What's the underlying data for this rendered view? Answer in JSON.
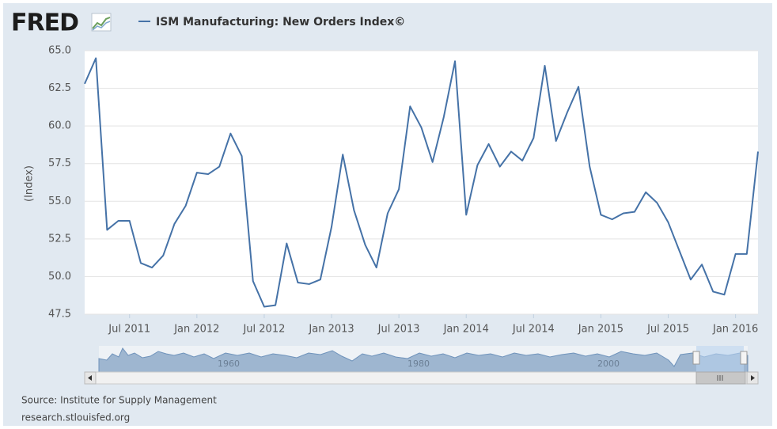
{
  "chart_data": {
    "type": "line",
    "logo": "FRED",
    "y_label": "(Index)",
    "source": "Source: Institute for Supply Management",
    "url": "research.stlouisfed.org",
    "navigator_labels": [
      "1960",
      "1980",
      "2000"
    ],
    "categories": [
      null,
      null,
      null,
      null,
      "Jul 2011",
      null,
      null,
      null,
      null,
      null,
      "Jan 2012",
      null,
      null,
      null,
      null,
      null,
      "Jul 2012",
      null,
      null,
      null,
      null,
      null,
      "Jan 2013",
      null,
      null,
      null,
      null,
      null,
      "Jul 2013",
      null,
      null,
      null,
      null,
      null,
      "Jan 2014",
      null,
      null,
      null,
      null,
      null,
      "Jul 2014",
      null,
      null,
      null,
      null,
      null,
      "Jan 2015",
      null,
      null,
      null,
      null,
      null,
      "Jul 2015",
      null,
      null,
      null,
      null,
      null,
      "Jan 2016",
      null,
      null
    ],
    "series": [
      {
        "name": "ISM Manufacturing: New Orders Index©",
        "color": "#4572a7",
        "values": [
          62.8,
          64.5,
          53.1,
          53.7,
          53.7,
          50.9,
          50.6,
          51.4,
          53.5,
          54.7,
          56.9,
          56.8,
          57.3,
          59.5,
          58.0,
          49.7,
          48.0,
          48.1,
          52.2,
          49.6,
          49.5,
          49.8,
          53.3,
          58.1,
          54.4,
          52.1,
          50.6,
          54.2,
          55.8,
          61.3,
          59.9,
          57.6,
          60.6,
          64.3,
          54.1,
          57.4,
          58.8,
          57.3,
          58.3,
          57.7,
          59.2,
          64.0,
          59.0,
          60.9,
          62.6,
          57.3,
          54.1,
          53.8,
          54.2,
          54.3,
          55.6,
          54.9,
          53.6,
          51.7,
          49.8,
          50.8,
          49.0,
          48.8,
          51.5,
          51.5,
          58.3
        ]
      }
    ],
    "ylim": [
      47.5,
      65
    ],
    "yticks": [
      {
        "value": 47.5,
        "label": "47.5"
      },
      {
        "value": 50,
        "label": "50.0"
      },
      {
        "value": 52.5,
        "label": "52.5"
      },
      {
        "value": 55,
        "label": "55.0"
      },
      {
        "value": 57.5,
        "label": "57.5"
      },
      {
        "value": 60,
        "label": "60.0"
      },
      {
        "value": 62.5,
        "label": "62.5"
      },
      {
        "value": 65,
        "label": "65.0"
      }
    ],
    "grid": true
  }
}
